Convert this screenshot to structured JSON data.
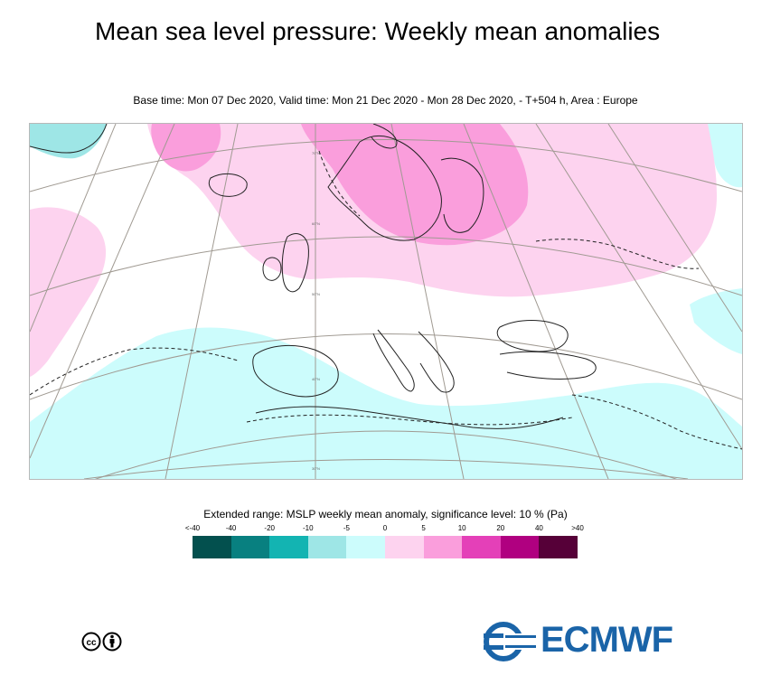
{
  "title": "Mean sea level pressure: Weekly mean anomalies",
  "subtitle": "Base time: Mon 07 Dec 2020, Valid time: Mon 21 Dec 2020 - Mon 28 Dec 2020, - T+504 h, Area : Europe",
  "legend": {
    "title": "Extended range: MSLP weekly mean anomaly, significance level: 10 % (Pa)",
    "ticks": [
      "<-40",
      "-40",
      "-20",
      "-10",
      "-5",
      "0",
      "5",
      "10",
      "20",
      "40",
      ">40"
    ],
    "colors": [
      "#03504e",
      "#088080",
      "#13b4b2",
      "#9ee6e6",
      "#ccfcfc",
      "#fdd3ef",
      "#fa9edc",
      "#e440b8",
      "#b00080",
      "#560038"
    ]
  },
  "map": {
    "colors": {
      "weak_negative": "#ccfcfc",
      "moderate_negative": "#9ee6e6",
      "weak_positive": "#fdd3ef",
      "moderate_positive": "#fa9edc",
      "coastline": "#222222",
      "graticule": "#a09a92"
    },
    "graticule_labels": [
      "70°N",
      "60°N",
      "50°N",
      "40°N",
      "30°N"
    ]
  },
  "footer": {
    "license_icon": "cc-by-icon",
    "logo_text": "ECMWF"
  }
}
